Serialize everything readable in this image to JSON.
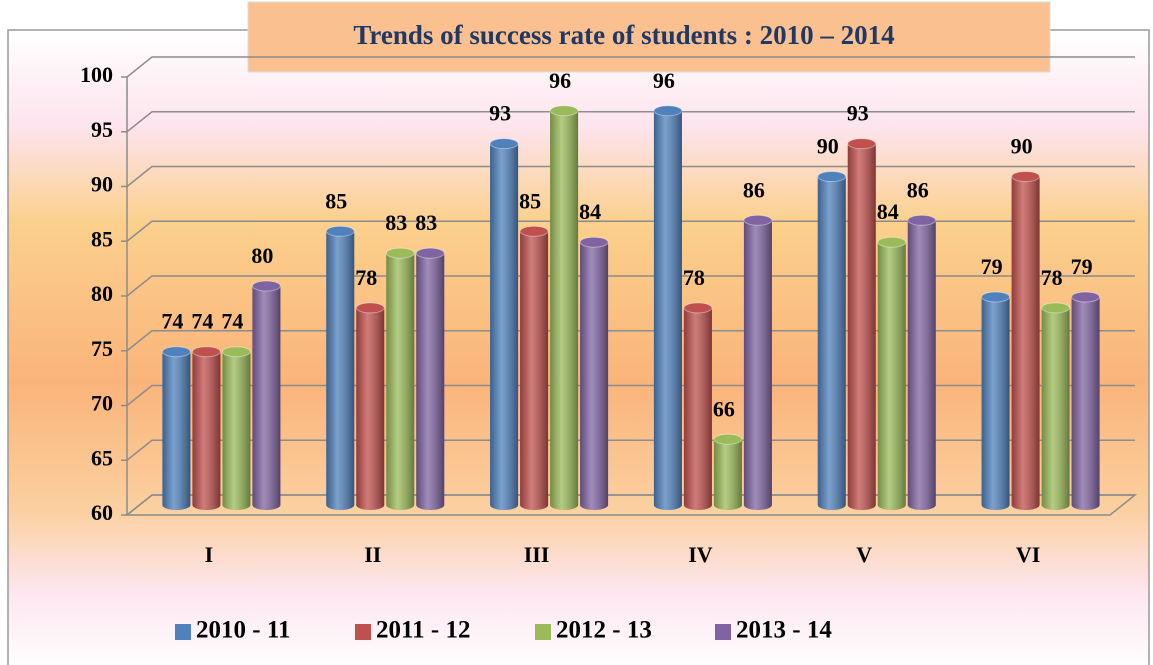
{
  "chart_data": {
    "type": "bar3d",
    "title": "Trends of success rate of students : 2010 – 2014",
    "categories": [
      "I",
      "II",
      "III",
      "IV",
      "V",
      "VI"
    ],
    "series": [
      {
        "name": "2010 - 11",
        "color": "#4f81bd",
        "values": [
          74,
          85,
          93,
          96,
          90,
          79
        ]
      },
      {
        "name": "2011 - 12",
        "color": "#c0504d",
        "values": [
          74,
          78,
          85,
          78,
          93,
          90
        ]
      },
      {
        "name": "2012 - 13",
        "color": "#9bbb59",
        "values": [
          74,
          83,
          96,
          66,
          84,
          78
        ]
      },
      {
        "name": "2013 - 14",
        "color": "#8064a2",
        "values": [
          80,
          83,
          84,
          86,
          86,
          79
        ]
      }
    ],
    "ylim": [
      60,
      100
    ],
    "yticks": [
      60,
      65,
      70,
      75,
      80,
      85,
      90,
      95,
      100
    ],
    "grid": true,
    "legend": "bottom"
  }
}
